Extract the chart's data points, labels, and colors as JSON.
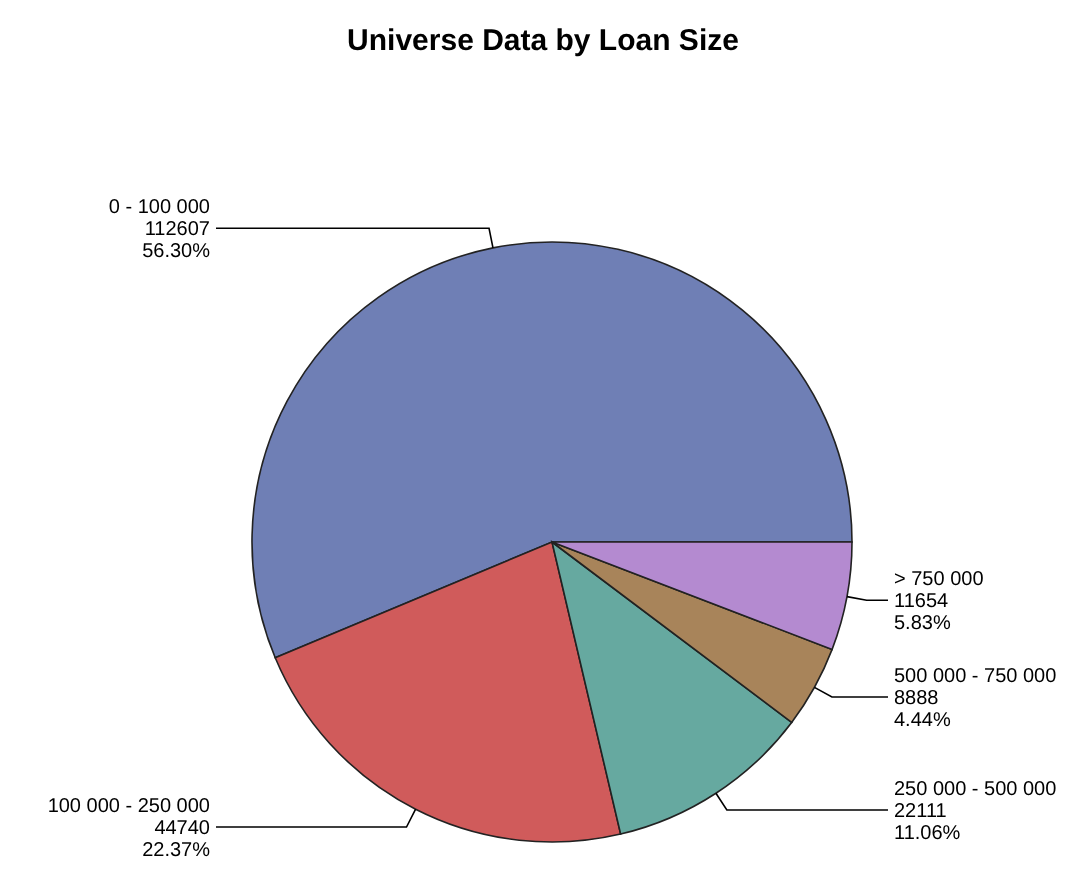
{
  "chart_data": {
    "type": "pie",
    "title": "Universe Data by Loan Size",
    "categories": [
      "0 - 100 000",
      "100 000 - 250 000",
      "250 000 - 500 000",
      "500 000 - 750 000",
      "> 750 000"
    ],
    "values": [
      112607,
      44740,
      22111,
      8888,
      11654
    ],
    "value_labels": [
      "112607\n56.30%",
      "44740\n22.37%",
      "22111\n11.06%",
      "8888\n4.44%",
      "11654\n5.83%"
    ],
    "colors": [
      "#6f7fb5",
      "#d05b5b",
      "#66a9a0",
      "#a8845a",
      "#b48ad0"
    ]
  }
}
